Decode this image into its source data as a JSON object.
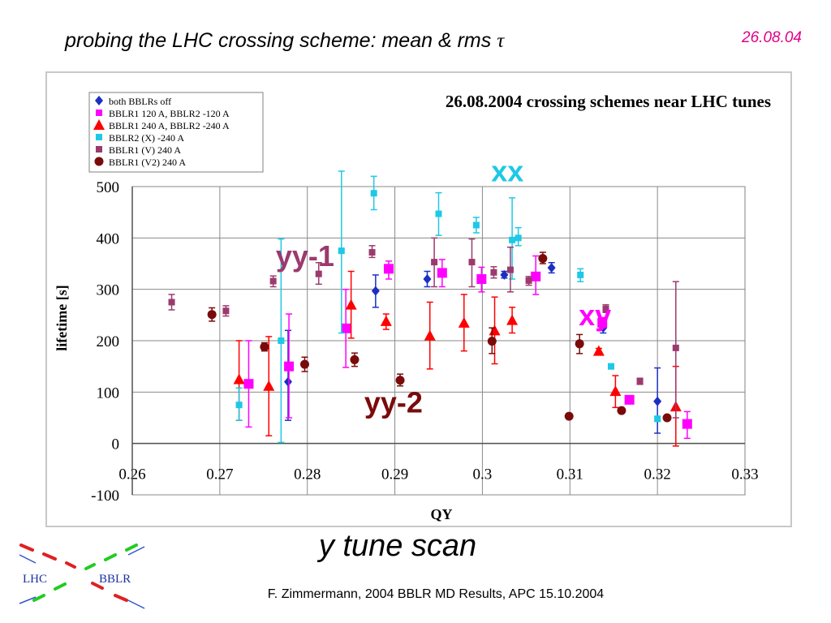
{
  "slide": {
    "title": "probing the LHC crossing scheme: mean & rms",
    "title_symbol": "τ",
    "date": "26.08.04",
    "subtitle": "y tune scan",
    "footer": "F. Zimmermann, 2004 BBLR MD Results, APC 15.10.2004",
    "logo_left": "LHC",
    "logo_right": "BBLR"
  },
  "chart_data": {
    "type": "scatter",
    "title": "26.08.2004 crossing schemes near LHC tunes",
    "xlabel": "QY",
    "ylabel": "lifetime [s]",
    "xlim": [
      0.26,
      0.33
    ],
    "ylim": [
      -100,
      500
    ],
    "x_ticks": [
      "0.26",
      "0.27",
      "0.28",
      "0.29",
      "0.3",
      "0.31",
      "0.32",
      "0.33"
    ],
    "y_ticks": [
      "-100",
      "0",
      "100",
      "200",
      "300",
      "400",
      "500"
    ],
    "grid": true,
    "legend_position": "top-left",
    "series": [
      {
        "name": "both BBLRs off",
        "color": "#1c2fc4",
        "marker": "diamond",
        "points": [
          [
            0.2778,
            120,
            45,
            220
          ],
          [
            0.2878,
            297,
            265,
            328
          ],
          [
            0.2937,
            320,
            305,
            335
          ],
          [
            0.3025,
            328,
            322,
            335
          ],
          [
            0.3079,
            342,
            332,
            352
          ],
          [
            0.3138,
            225,
            215,
            233
          ],
          [
            0.32,
            82,
            20,
            147
          ]
        ]
      },
      {
        "name": "BBLR1 120 A, BBLR2 -120 A",
        "color": "#ff00ff",
        "marker": "square",
        "points": [
          [
            0.2733,
            116,
            32,
            200
          ],
          [
            0.2779,
            150,
            50,
            252
          ],
          [
            0.2844,
            224,
            148,
            300
          ],
          [
            0.2893,
            340,
            320,
            355
          ],
          [
            0.2954,
            332,
            305,
            358
          ],
          [
            0.2999,
            320,
            295,
            343
          ],
          [
            0.3061,
            325,
            290,
            365
          ],
          [
            0.3137,
            235,
            225,
            245
          ],
          [
            0.3168,
            85,
            80,
            90
          ],
          [
            0.3234,
            38,
            10,
            62
          ]
        ]
      },
      {
        "name": "BBLR1 240 A, BBLR2 -240 A",
        "color": "#ff0000",
        "marker": "triangle",
        "points": [
          [
            0.2722,
            125,
            45,
            200
          ],
          [
            0.2756,
            112,
            15,
            208
          ],
          [
            0.285,
            270,
            205,
            335
          ],
          [
            0.289,
            238,
            222,
            252
          ],
          [
            0.294,
            210,
            145,
            275
          ],
          [
            0.2979,
            235,
            180,
            290
          ],
          [
            0.3014,
            220,
            155,
            285
          ],
          [
            0.3034,
            240,
            215,
            265
          ],
          [
            0.3133,
            180,
            175,
            185
          ],
          [
            0.3152,
            102,
            70,
            132
          ],
          [
            0.3221,
            72,
            -5,
            150
          ]
        ]
      },
      {
        "name": "BBLR2 (X) -240 A",
        "color": "#1ec8e6",
        "marker": "square-small",
        "points": [
          [
            0.2722,
            75,
            45,
            108
          ],
          [
            0.277,
            200,
            2,
            398
          ],
          [
            0.2839,
            375,
            215,
            530
          ],
          [
            0.2876,
            487,
            455,
            520
          ],
          [
            0.295,
            447,
            405,
            488
          ],
          [
            0.2993,
            425,
            410,
            440
          ],
          [
            0.3034,
            396,
            320,
            478
          ],
          [
            0.3041,
            400,
            385,
            420
          ],
          [
            0.3112,
            328,
            315,
            340
          ],
          [
            0.3147,
            150,
            145,
            155
          ],
          [
            0.32,
            48,
            43,
            53
          ]
        ]
      },
      {
        "name": "BBLR1 (V) 240 A",
        "color": "#9b3a6e",
        "marker": "square-small",
        "points": [
          [
            0.2645,
            275,
            260,
            290
          ],
          [
            0.2707,
            258,
            248,
            268
          ],
          [
            0.2761,
            316,
            305,
            326
          ],
          [
            0.2813,
            330,
            310,
            352
          ],
          [
            0.2874,
            372,
            362,
            385
          ],
          [
            0.2945,
            353,
            305,
            400
          ],
          [
            0.2988,
            353,
            305,
            398
          ],
          [
            0.3013,
            333,
            322,
            344
          ],
          [
            0.3032,
            338,
            295,
            382
          ],
          [
            0.3053,
            317,
            308,
            325
          ],
          [
            0.3141,
            262,
            255,
            270
          ],
          [
            0.318,
            121,
            115,
            127
          ],
          [
            0.3221,
            186,
            50,
            315
          ]
        ]
      },
      {
        "name": "BBLR1 (V2) 240 A",
        "color": "#7a0b0b",
        "marker": "circle",
        "points": [
          [
            0.2691,
            251,
            238,
            264
          ],
          [
            0.2751,
            188,
            180,
            196
          ],
          [
            0.2797,
            154,
            140,
            168
          ],
          [
            0.2854,
            163,
            150,
            176
          ],
          [
            0.2906,
            123,
            112,
            135
          ],
          [
            0.3011,
            199,
            175,
            225
          ],
          [
            0.3069,
            360,
            350,
            372
          ],
          [
            0.3099,
            53,
            50,
            56
          ],
          [
            0.3111,
            194,
            175,
            212
          ],
          [
            0.3159,
            64,
            60,
            68
          ],
          [
            0.3211,
            50,
            46,
            54
          ]
        ]
      }
    ],
    "annotations": [
      {
        "text": "xx",
        "color": "#1ec8e6",
        "x": 0.301,
        "y": 510
      },
      {
        "text": "yy-1",
        "color": "#9b3a6e",
        "x": 0.2764,
        "y": 345
      },
      {
        "text": "xy",
        "color": "#ff00ff",
        "x": 0.311,
        "y": 230
      },
      {
        "text": "yy-2",
        "color": "#7a0b0b",
        "x": 0.2865,
        "y": 60
      }
    ]
  }
}
